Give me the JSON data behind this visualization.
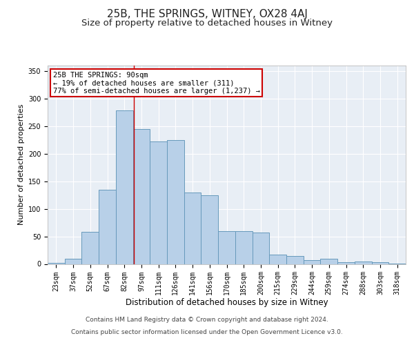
{
  "title": "25B, THE SPRINGS, WITNEY, OX28 4AJ",
  "subtitle": "Size of property relative to detached houses in Witney",
  "xlabel": "Distribution of detached houses by size in Witney",
  "ylabel": "Number of detached properties",
  "categories": [
    "23sqm",
    "37sqm",
    "52sqm",
    "67sqm",
    "82sqm",
    "97sqm",
    "111sqm",
    "126sqm",
    "141sqm",
    "156sqm",
    "170sqm",
    "185sqm",
    "200sqm",
    "215sqm",
    "229sqm",
    "244sqm",
    "259sqm",
    "274sqm",
    "288sqm",
    "303sqm",
    "318sqm"
  ],
  "values": [
    2,
    10,
    58,
    135,
    278,
    245,
    222,
    225,
    130,
    125,
    60,
    60,
    57,
    17,
    15,
    7,
    9,
    3,
    5,
    3,
    1
  ],
  "bar_color": "#b8d0e8",
  "bar_edgecolor": "#6699bb",
  "background_color": "#ffffff",
  "plot_bg_color": "#e8eef5",
  "grid_color": "#ffffff",
  "annotation_line1": "25B THE SPRINGS: 90sqm",
  "annotation_line2": "← 19% of detached houses are smaller (311)",
  "annotation_line3": "77% of semi-detached houses are larger (1,237) →",
  "annotation_box_edgecolor": "#cc0000",
  "vline_x_index": 4.57,
  "vline_color": "#cc0000",
  "ylim": [
    0,
    360
  ],
  "yticks": [
    0,
    50,
    100,
    150,
    200,
    250,
    300,
    350
  ],
  "footer_line1": "Contains HM Land Registry data © Crown copyright and database right 2024.",
  "footer_line2": "Contains public sector information licensed under the Open Government Licence v3.0.",
  "title_fontsize": 11,
  "subtitle_fontsize": 9.5,
  "xlabel_fontsize": 8.5,
  "ylabel_fontsize": 8,
  "tick_fontsize": 7,
  "footer_fontsize": 6.5,
  "annotation_fontsize": 7.5
}
